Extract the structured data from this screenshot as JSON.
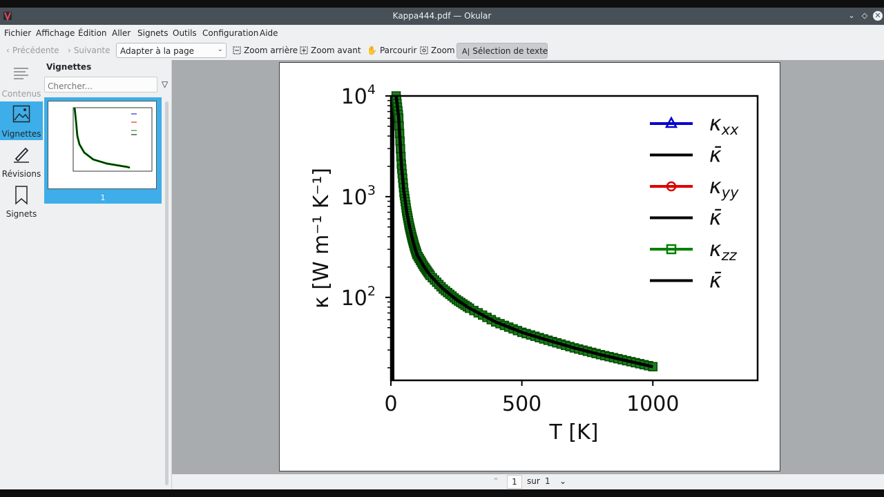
{
  "window": {
    "title": "Kappa444.pdf — Okular"
  },
  "menu": [
    "Fichier",
    "Affichage",
    "Édition",
    "Aller",
    "Signets",
    "Outils",
    "Configuration",
    "Aide"
  ],
  "toolbar": {
    "prev": "Précédente",
    "next": "Suivante",
    "zoom_mode": "Adapter à la page",
    "zoom_out": "Zoom arrière",
    "zoom_in": "Zoom avant",
    "browse": "Parcourir",
    "zoom": "Zoom",
    "text_select": "Sélection de texte"
  },
  "sidebar": {
    "items": [
      {
        "label": "Contenus",
        "icon": "contents-icon",
        "enabled": false
      },
      {
        "label": "Vignettes",
        "icon": "thumbnails-icon",
        "active": true
      },
      {
        "label": "Révisions",
        "icon": "pen-icon"
      },
      {
        "label": "Signets",
        "icon": "bookmark-icon"
      }
    ]
  },
  "thumbnails": {
    "title": "Vignettes",
    "search_placeholder": "Chercher...",
    "page_label": "1"
  },
  "status": {
    "current_page": "1",
    "of": "sur",
    "total": "1"
  },
  "colors": {
    "accent": "#3daee9",
    "kxx": "#0000cc",
    "kyy": "#dd0000",
    "kzz": "#008000",
    "kbar": "#000000"
  },
  "chart_data": {
    "type": "line",
    "xlabel": "T [K]",
    "ylabel": "κ [W m⁻¹ K⁻¹]",
    "y_scale": "log",
    "xlim": [
      0,
      1400
    ],
    "ylim": [
      15,
      10000
    ],
    "xticks": [
      0,
      500,
      1000
    ],
    "xtick_labels": [
      "0",
      "500",
      "1000"
    ],
    "yticks": [
      100,
      1000,
      10000
    ],
    "ytick_labels": [
      [
        "10",
        "2"
      ],
      [
        "10",
        "3"
      ],
      [
        "10",
        "4"
      ]
    ],
    "legend_position": "top-right",
    "series": [
      {
        "name": "κxx",
        "legend_main": "κ",
        "legend_sub": "xx",
        "marker": "triangle",
        "color": "#0000cc"
      },
      {
        "name": "κ̄",
        "legend_main": "κ̄",
        "legend_sub": "",
        "marker": "none",
        "color": "#000000"
      },
      {
        "name": "κyy",
        "legend_main": "κ",
        "legend_sub": "yy",
        "marker": "circle",
        "color": "#dd0000"
      },
      {
        "name": "κ̄",
        "legend_main": "κ̄",
        "legend_sub": "",
        "marker": "none",
        "color": "#000000"
      },
      {
        "name": "κzz",
        "legend_main": "κ",
        "legend_sub": "zz",
        "marker": "square",
        "color": "#008000"
      },
      {
        "name": "κ̄",
        "legend_main": "κ̄",
        "legend_sub": "",
        "marker": "none",
        "color": "#000000"
      }
    ],
    "curve": {
      "x": [
        10,
        20,
        30,
        40,
        50,
        60,
        70,
        80,
        90,
        100,
        125,
        150,
        200,
        250,
        300,
        400,
        500,
        600,
        700,
        800,
        900,
        1000
      ],
      "y": [
        20000,
        10000,
        6000,
        2100,
        1100,
        720,
        520,
        400,
        320,
        265,
        205,
        165,
        121,
        95,
        78,
        57,
        45,
        37.5,
        31.5,
        27,
        23.5,
        20.5
      ]
    }
  }
}
